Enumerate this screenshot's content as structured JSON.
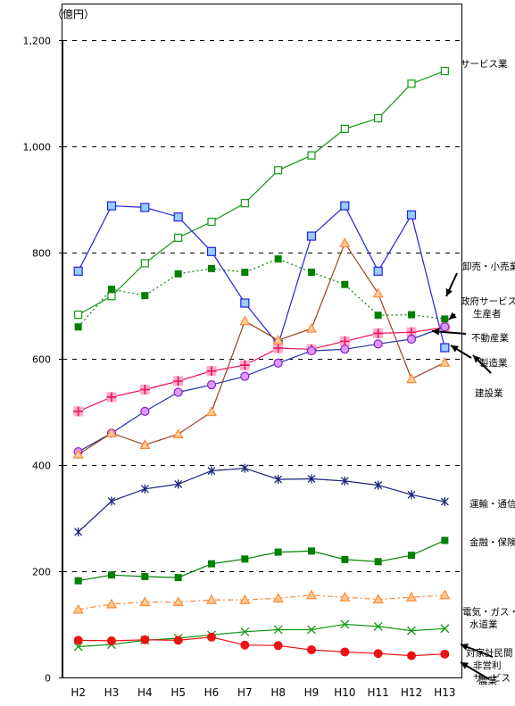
{
  "chart_data": {
    "type": "line",
    "unit_label": "（億円）",
    "categories": [
      "H2",
      "H3",
      "H4",
      "H5",
      "H6",
      "H7",
      "H8",
      "H9",
      "H10",
      "H11",
      "H12",
      "H13"
    ],
    "y_ticks": [
      "0",
      "200",
      "400",
      "600",
      "800",
      "1,000",
      "1,200"
    ],
    "ylim": [
      0,
      1200
    ],
    "grid": "dashed horizontal",
    "series": [
      {
        "name": "サービス業",
        "label": [
          "サービス業"
        ],
        "color": "#119911",
        "marker": "square-open",
        "dash": "",
        "values": [
          683,
          718,
          780,
          828,
          858,
          893,
          955,
          983,
          1033,
          1053,
          1118,
          1142
        ]
      },
      {
        "name": "卸売・小売業",
        "label": [
          "卸売・小売業"
        ],
        "color": "#008000",
        "marker": "square-filled",
        "dash": "2 3",
        "values": [
          660,
          731,
          719,
          760,
          770,
          763,
          788,
          763,
          740,
          682,
          683,
          675
        ]
      },
      {
        "name": "政府サービス生産者",
        "label": [
          "政府サービス",
          "生産者"
        ],
        "color": "#2222dd",
        "marker": "square-blue",
        "dash": "",
        "values": [
          765,
          888,
          885,
          867,
          802,
          705,
          627,
          831,
          888,
          765,
          871,
          621
        ]
      },
      {
        "name": "不動産業",
        "label": [
          "不動産業"
        ],
        "color": "#ee1155",
        "marker": "plus-box",
        "dash": "",
        "values": [
          501,
          528,
          542,
          558,
          577,
          588,
          620,
          618,
          633,
          648,
          650,
          659
        ]
      },
      {
        "name": "製造業",
        "label": [
          "製造業"
        ],
        "color": "#2233aa",
        "marker": "circle-purple",
        "dash": "",
        "values": [
          425,
          460,
          501,
          537,
          551,
          567,
          592,
          615,
          618,
          628,
          637,
          660
        ]
      },
      {
        "name": "建設業",
        "label": [
          "建設業"
        ],
        "color": "#994422",
        "marker": "triangle-orange",
        "dash": "",
        "values": [
          420,
          460,
          438,
          458,
          500,
          671,
          635,
          657,
          818,
          723,
          562,
          593
        ]
      },
      {
        "name": "運輸・通信業",
        "label": [
          "運輸・通信業"
        ],
        "color": "#1a237e",
        "marker": "star",
        "dash": "",
        "values": [
          274,
          332,
          355,
          364,
          389,
          394,
          373,
          374,
          370,
          362,
          344,
          331
        ]
      },
      {
        "name": "金融・保険業",
        "label": [
          "金融・保険業"
        ],
        "color": "#008000",
        "marker": "square-filled",
        "dash": "",
        "values": [
          182,
          193,
          190,
          188,
          214,
          223,
          236,
          238,
          222,
          218,
          230,
          258
        ]
      },
      {
        "name": "電気・ガス・水道業",
        "label": [
          "電気・ガス・",
          "水道業"
        ],
        "color": "#ff8833",
        "marker": "triangle-orange",
        "dash": "6 3 2 3",
        "values": [
          128,
          138,
          142,
          142,
          146,
          146,
          149,
          155,
          151,
          147,
          151,
          155
        ]
      },
      {
        "name": "対家計民間非営利サービス",
        "label": [
          "対家計民間",
          "非営利",
          "サービス"
        ],
        "color": "#119911",
        "marker": "x",
        "dash": "",
        "values": [
          58,
          62,
          70,
          74,
          80,
          86,
          90,
          90,
          100,
          96,
          88,
          92
        ]
      },
      {
        "name": "農業",
        "label": [
          "農業"
        ],
        "color": "#ee1111",
        "marker": "circle-red",
        "dash": "",
        "values": [
          70,
          69,
          71,
          70,
          76,
          61,
          60,
          52,
          48,
          45,
          41,
          44
        ]
      }
    ]
  }
}
